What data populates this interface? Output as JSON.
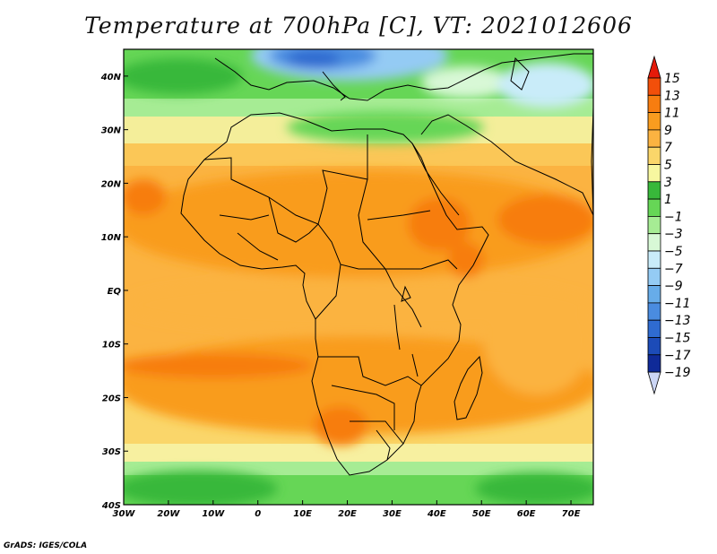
{
  "title": "Temperature at 700hPa [C], VT: 2021012606",
  "credit": "GrADS: IGES/COLA",
  "map": {
    "lon_range": [
      -30,
      75
    ],
    "lat_range": [
      -40,
      45
    ],
    "lon_ticks": [
      {
        "value": -30,
        "label": "30W"
      },
      {
        "value": -20,
        "label": "20W"
      },
      {
        "value": -10,
        "label": "10W"
      },
      {
        "value": 0,
        "label": "0"
      },
      {
        "value": 10,
        "label": "10E"
      },
      {
        "value": 20,
        "label": "20E"
      },
      {
        "value": 30,
        "label": "30E"
      },
      {
        "value": 40,
        "label": "40E"
      },
      {
        "value": 50,
        "label": "50E"
      },
      {
        "value": 60,
        "label": "60E"
      },
      {
        "value": 70,
        "label": "70E"
      }
    ],
    "lat_ticks": [
      {
        "value": 40,
        "label": "40N"
      },
      {
        "value": 30,
        "label": "30N"
      },
      {
        "value": 20,
        "label": "20N"
      },
      {
        "value": 10,
        "label": "10N"
      },
      {
        "value": 0,
        "label": "EQ"
      },
      {
        "value": -10,
        "label": "10S"
      },
      {
        "value": -20,
        "label": "20S"
      },
      {
        "value": -30,
        "label": "30S"
      },
      {
        "value": -40,
        "label": "40S"
      }
    ]
  },
  "colorbar": {
    "labels": [
      "15",
      "13",
      "11",
      "9",
      "7",
      "5",
      "3",
      "1",
      "−1",
      "−3",
      "−5",
      "−7",
      "−9",
      "−11",
      "−13",
      "−15",
      "−17",
      "−19"
    ],
    "colors": [
      "#e41a0a",
      "#f24f0a",
      "#f77d10",
      "#f99c1f",
      "#fbb341",
      "#fad66a",
      "#f7f7a0",
      "#38b83a",
      "#66d656",
      "#a6ec94",
      "#d8f8d6",
      "#c9ecf9",
      "#94cbf4",
      "#67ace9",
      "#4a8ce0",
      "#2f6bd0",
      "#1c4bb8",
      "#0f2a98",
      "#0a1775",
      "#ccd6f5"
    ]
  },
  "coast_color": "#000000"
}
